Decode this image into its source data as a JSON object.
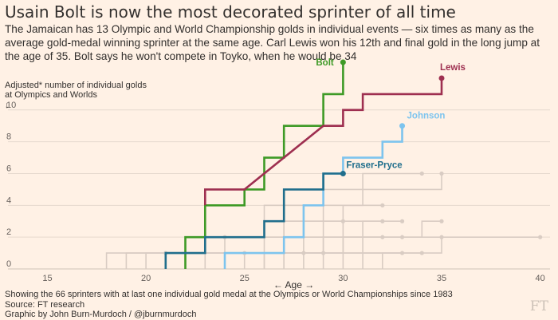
{
  "header": {
    "title": "Usain Bolt is now the most decorated sprinter of all time",
    "subtitle": "The Jamaican has 13 Olympic and World Championship golds in individual events — six times as many as the average gold-medal winning sprinter at the same age. Carl Lewis won his 12th and final gold in the long jump at the age of 35. Bolt says he won't compete in Toyko, when he would be 34"
  },
  "footer": {
    "note": "Showing the 66 sprinters with at last one individual gold medal at the Olympics or World Championships since 1983",
    "source": "Source: FT research",
    "credit": "Graphic by John Burn-Murdoch / @jburnmurdoch",
    "logo": "FT"
  },
  "chart_data": {
    "type": "line",
    "step": true,
    "ylabel_lines": [
      "Adjusted* number of individual golds",
      "at Olympics and Worlds"
    ],
    "ylabel_arrow": "↓",
    "xlabel": "← Age →",
    "xlim": [
      13,
      40.5
    ],
    "ylim": [
      0,
      12.5
    ],
    "xticks": [
      15,
      20,
      25,
      30,
      35,
      40
    ],
    "yticks": [
      0,
      2,
      4,
      6,
      8,
      10
    ],
    "grid": "horizontal",
    "background_series_color": "#d9ccc3",
    "series": [
      {
        "name": "Bolt",
        "color": "#3e9a26",
        "end_marker": true,
        "label": "Bolt",
        "points": [
          [
            22,
            0
          ],
          [
            22,
            2
          ],
          [
            23,
            2
          ],
          [
            23,
            4
          ],
          [
            25,
            4
          ],
          [
            25,
            5
          ],
          [
            26,
            5
          ],
          [
            26,
            7
          ],
          [
            27,
            7
          ],
          [
            27,
            9
          ],
          [
            29,
            9
          ],
          [
            29,
            11
          ],
          [
            30,
            11
          ],
          [
            30,
            13
          ]
        ]
      },
      {
        "name": "Lewis",
        "color": "#9e2f50",
        "end_marker": true,
        "label": "Lewis",
        "points": [
          [
            23,
            4
          ],
          [
            23,
            5
          ],
          [
            25,
            5
          ],
          [
            29,
            9
          ],
          [
            30,
            9
          ],
          [
            30,
            10
          ],
          [
            31,
            10
          ],
          [
            31,
            11
          ],
          [
            35,
            11
          ],
          [
            35,
            12
          ]
        ]
      },
      {
        "name": "Johnson",
        "color": "#7dc4ee",
        "end_marker": true,
        "label": "Johnson",
        "points": [
          [
            24,
            0
          ],
          [
            24,
            1
          ],
          [
            27,
            1
          ],
          [
            27,
            2
          ],
          [
            28,
            2
          ],
          [
            28,
            4
          ],
          [
            29,
            4
          ],
          [
            29,
            6
          ],
          [
            30,
            6
          ],
          [
            30,
            7
          ],
          [
            32,
            7
          ],
          [
            32,
            8
          ],
          [
            33,
            8
          ],
          [
            33,
            9
          ]
        ]
      },
      {
        "name": "Fraser-Pryce",
        "color": "#206e8c",
        "end_marker": true,
        "label": "Fraser-Pryce",
        "points": [
          [
            21,
            0
          ],
          [
            21,
            1
          ],
          [
            23,
            1
          ],
          [
            23,
            2
          ],
          [
            26,
            2
          ],
          [
            26,
            3
          ],
          [
            27,
            3
          ],
          [
            27,
            5
          ],
          [
            29,
            5
          ],
          [
            29,
            6
          ],
          [
            30,
            6
          ]
        ]
      }
    ],
    "background_series": [
      [
        [
          19,
          0
        ],
        [
          19,
          1
        ],
        [
          22,
          1
        ],
        [
          22,
          2
        ],
        [
          24,
          2
        ]
      ],
      [
        [
          20,
          0
        ],
        [
          20,
          1
        ],
        [
          24,
          1
        ],
        [
          24,
          2
        ],
        [
          27,
          2
        ],
        [
          27,
          3
        ],
        [
          30,
          3
        ]
      ],
      [
        [
          21,
          0
        ],
        [
          21,
          1
        ],
        [
          25,
          1
        ]
      ],
      [
        [
          22,
          0
        ],
        [
          22,
          1
        ],
        [
          23,
          1
        ],
        [
          23,
          2
        ],
        [
          26,
          2
        ],
        [
          26,
          4
        ],
        [
          29,
          4
        ],
        [
          29,
          5
        ],
        [
          31,
          5
        ],
        [
          31,
          6
        ],
        [
          34,
          6
        ]
      ],
      [
        [
          23,
          0
        ],
        [
          23,
          1
        ],
        [
          27,
          1
        ],
        [
          27,
          3
        ],
        [
          29,
          3
        ],
        [
          29,
          4
        ],
        [
          32,
          4
        ]
      ],
      [
        [
          24,
          0
        ],
        [
          24,
          1
        ],
        [
          26,
          1
        ],
        [
          26,
          2
        ],
        [
          30,
          2
        ],
        [
          30,
          3
        ],
        [
          32,
          3
        ]
      ],
      [
        [
          25,
          0
        ],
        [
          25,
          1
        ],
        [
          29,
          1
        ],
        [
          29,
          2
        ],
        [
          33,
          2
        ]
      ],
      [
        [
          26,
          0
        ],
        [
          26,
          1
        ],
        [
          30,
          1
        ],
        [
          30,
          2
        ],
        [
          32,
          2
        ]
      ],
      [
        [
          27,
          0
        ],
        [
          27,
          1
        ],
        [
          31,
          1
        ],
        [
          31,
          2
        ],
        [
          34,
          2
        ],
        [
          34,
          3
        ],
        [
          35,
          3
        ]
      ],
      [
        [
          28,
          0
        ],
        [
          28,
          1
        ],
        [
          30,
          1
        ],
        [
          30,
          2
        ],
        [
          35,
          2
        ]
      ],
      [
        [
          29,
          0
        ],
        [
          29,
          2
        ],
        [
          31,
          2
        ],
        [
          31,
          3
        ],
        [
          33,
          3
        ]
      ],
      [
        [
          31,
          0
        ],
        [
          31,
          1
        ],
        [
          35,
          1
        ],
        [
          35,
          2
        ],
        [
          40,
          2
        ]
      ],
      [
        [
          18,
          0
        ],
        [
          18,
          1
        ],
        [
          21,
          1
        ]
      ],
      [
        [
          24,
          0
        ],
        [
          24,
          1
        ],
        [
          28,
          1
        ]
      ],
      [
        [
          27,
          0
        ],
        [
          27,
          1
        ],
        [
          29,
          1
        ]
      ],
      [
        [
          30,
          0
        ],
        [
          30,
          1
        ],
        [
          33,
          1
        ]
      ],
      [
        [
          32,
          0
        ],
        [
          32,
          1
        ],
        [
          34,
          1
        ]
      ],
      [
        [
          26,
          0
        ],
        [
          26,
          1
        ],
        [
          28,
          1
        ],
        [
          28,
          2
        ],
        [
          29,
          2
        ],
        [
          29,
          3
        ],
        [
          30,
          3
        ],
        [
          30,
          4
        ],
        [
          31,
          4
        ],
        [
          31,
          5
        ],
        [
          35,
          5
        ],
        [
          35,
          6
        ]
      ]
    ]
  }
}
